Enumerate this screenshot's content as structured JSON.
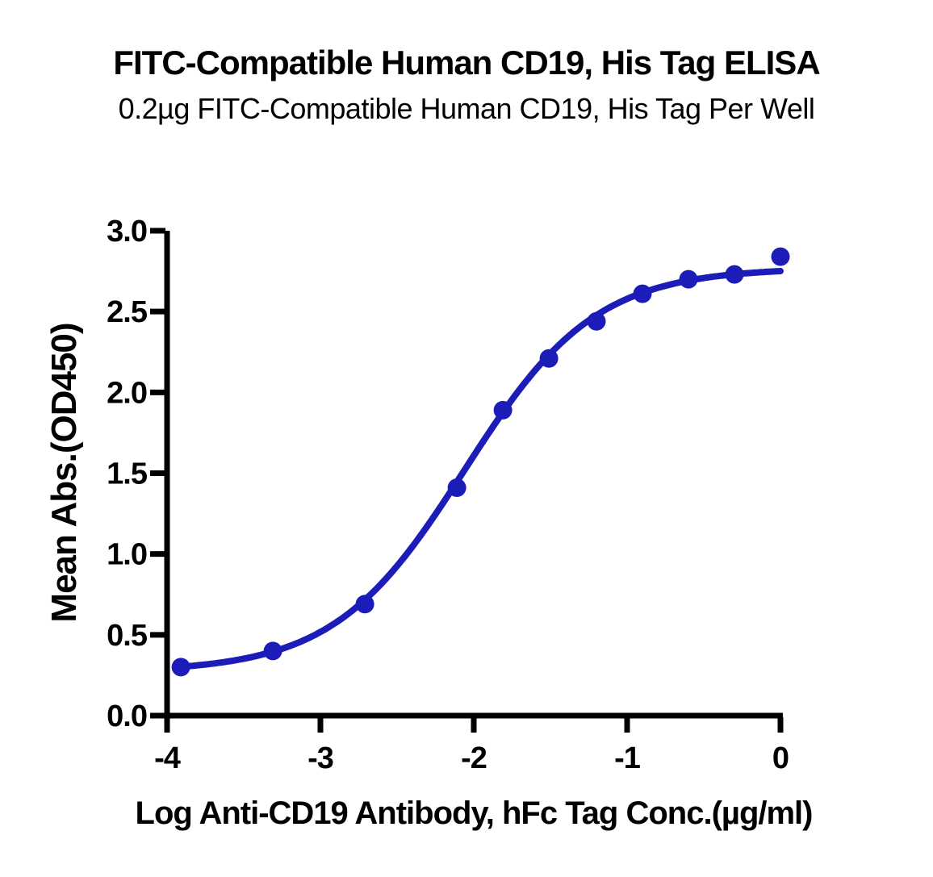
{
  "chart_data": {
    "type": "scatter",
    "title": "FITC-Compatible Human CD19, His Tag ELISA",
    "subtitle": "0.2µg FITC-Compatible Human CD19, His Tag Per Well",
    "xlabel": "Log Anti-CD19 Antibody, hFc Tag Conc.(µg/ml)",
    "ylabel": "Mean Abs.(OD450)",
    "xlim": [
      -4,
      0
    ],
    "ylim": [
      0,
      3
    ],
    "xticks": [
      -4,
      -3,
      -2,
      -1,
      0
    ],
    "xtick_labels": [
      "-4",
      "-3",
      "-2",
      "-1",
      "0"
    ],
    "yticks": [
      0,
      0.5,
      1,
      1.5,
      2,
      2.5,
      3
    ],
    "ytick_labels": [
      "0.0",
      "0.5",
      "1.0",
      "1.5",
      "2.0",
      "2.5",
      "3.0"
    ],
    "grid": false,
    "legend": null,
    "colors": {
      "series": "#1c1db8",
      "axis": "#000000",
      "background": "#ffffff"
    },
    "series": [
      {
        "name": "FITC-Compatible Human CD19, His Tag",
        "points": [
          [
            -3.91,
            0.3
          ],
          [
            -3.31,
            0.4
          ],
          [
            -2.71,
            0.69
          ],
          [
            -2.11,
            1.41
          ],
          [
            -1.81,
            1.89
          ],
          [
            -1.51,
            2.21
          ],
          [
            -1.2,
            2.44
          ],
          [
            -0.9,
            2.61
          ],
          [
            -0.6,
            2.7
          ],
          [
            -0.3,
            2.73
          ],
          [
            0.0,
            2.84
          ]
        ],
        "fit": {
          "model": "4PL",
          "bottom": 0.27,
          "top": 2.77,
          "logEC50": -2.06,
          "hill": 1.02
        }
      }
    ]
  }
}
